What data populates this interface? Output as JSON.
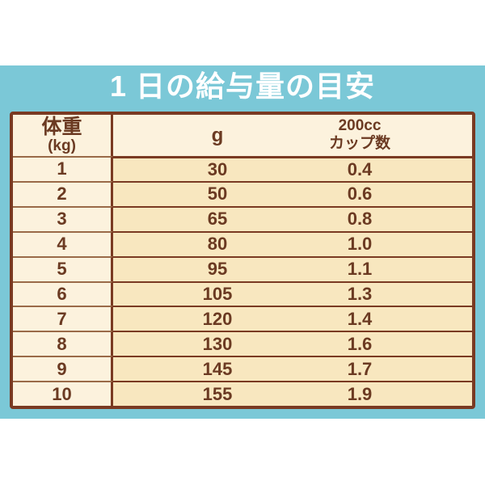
{
  "title": "1 日の給与量の目安",
  "table": {
    "header": {
      "weight": "体重",
      "weight_unit": "(kg)",
      "grams": "g",
      "cup_line1": "200cc",
      "cup_line2": "カップ数"
    },
    "rows": [
      {
        "kg": "1",
        "g": "30",
        "cups": "0.4"
      },
      {
        "kg": "2",
        "g": "50",
        "cups": "0.6"
      },
      {
        "kg": "3",
        "g": "65",
        "cups": "0.8"
      },
      {
        "kg": "4",
        "g": "80",
        "cups": "1.0"
      },
      {
        "kg": "5",
        "g": "95",
        "cups": "1.1"
      },
      {
        "kg": "6",
        "g": "105",
        "cups": "1.3"
      },
      {
        "kg": "7",
        "g": "120",
        "cups": "1.4"
      },
      {
        "kg": "8",
        "g": "130",
        "cups": "1.6"
      },
      {
        "kg": "9",
        "g": "145",
        "cups": "1.7"
      },
      {
        "kg": "10",
        "g": "155",
        "cups": "1.9"
      }
    ]
  },
  "colors": {
    "background_blue": "#7bc8d7",
    "page_white": "#ffffff",
    "cell_cream": "#fcf2dd",
    "cell_tan": "#f8e7bf",
    "border_brown": "#7a3a22",
    "row_line_light": "#9a6a48",
    "text_brown": "#6b3a22",
    "title_white": "#ffffff"
  }
}
